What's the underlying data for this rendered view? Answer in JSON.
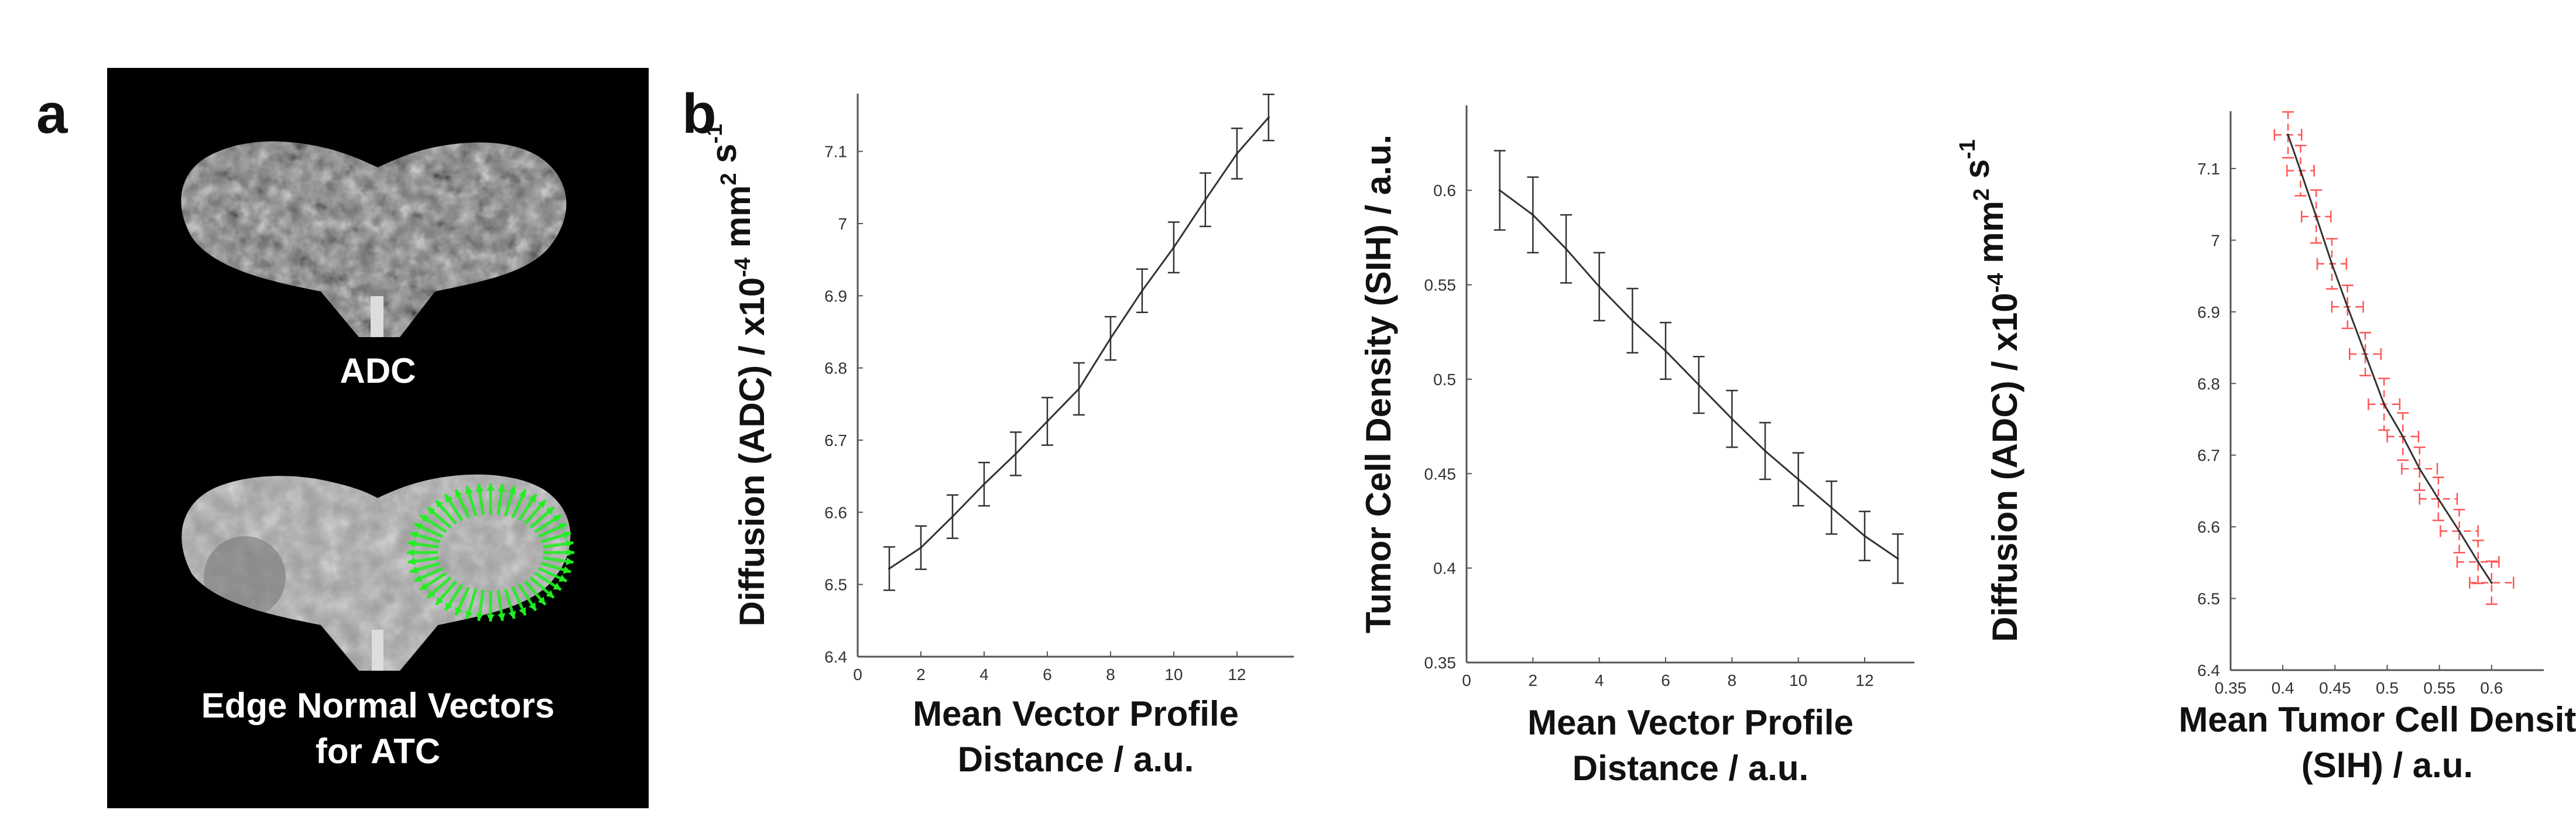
{
  "panel_letters": {
    "a": "a",
    "b": "b"
  },
  "panel_a": {
    "top_image_label": "ADC",
    "bottom_image_label_line1": "Edge Normal Vectors",
    "bottom_image_label_line2": "for ATC",
    "vector_color": "#22ee22"
  },
  "colors": {
    "line": "#333333",
    "axis": "#555555",
    "errorbar_red": "#ff5555"
  },
  "chart_data": [
    {
      "type": "line",
      "title": "",
      "xlabel_lines": [
        "Mean Vector Profile",
        "Distance / a.u."
      ],
      "ylabel": "Diffusion (ADC) / x10",
      "ylabel_sup1": "-4",
      "ylabel_mid": " mm",
      "ylabel_sup2": "2",
      "ylabel_mid2": " s",
      "ylabel_sup3": "-1",
      "xlim": [
        0,
        13.8
      ],
      "ylim": [
        6.4,
        7.18
      ],
      "xticks": [
        0,
        2,
        4,
        6,
        8,
        10,
        12
      ],
      "xtick_labels": [
        "0",
        "2",
        "4",
        "6",
        "8",
        "10",
        "12"
      ],
      "yticks": [
        6.4,
        6.5,
        6.6,
        6.7,
        6.8,
        6.9,
        7.0,
        7.1
      ],
      "ytick_labels": [
        "6.4",
        "6.5",
        "6.6",
        "6.7",
        "6.8",
        "6.9",
        "7",
        "7.1"
      ],
      "grid": false,
      "series": [
        {
          "x": [
            1,
            2,
            3,
            4,
            5,
            6,
            7,
            8,
            9,
            10,
            11,
            12,
            13
          ],
          "y": [
            6.522,
            6.551,
            6.594,
            6.639,
            6.681,
            6.726,
            6.771,
            6.841,
            6.907,
            6.967,
            7.033,
            7.097,
            7.147
          ],
          "yerr": [
            0.03,
            0.03,
            0.03,
            0.03,
            0.03,
            0.033,
            0.036,
            0.03,
            0.03,
            0.035,
            0.037,
            0.035,
            0.032
          ]
        }
      ]
    },
    {
      "type": "line",
      "title": "",
      "ylabel": "Tumor Cell Density (SIH) / a.u.",
      "xlabel_lines": [
        "Mean Vector Profile",
        "Distance / a.u."
      ],
      "xlim": [
        0,
        13.5
      ],
      "ylim": [
        0.35,
        0.645
      ],
      "xticks": [
        0,
        2,
        4,
        6,
        8,
        10,
        12
      ],
      "xtick_labels": [
        "0",
        "2",
        "4",
        "6",
        "8",
        "10",
        "12"
      ],
      "yticks": [
        0.35,
        0.4,
        0.45,
        0.5,
        0.55,
        0.6
      ],
      "ytick_labels": [
        "0.35",
        "0.4",
        "0.45",
        "0.5",
        "0.55",
        "0.6"
      ],
      "grid": false,
      "series": [
        {
          "x": [
            1,
            2,
            3,
            4,
            5,
            6,
            7,
            8,
            9,
            10,
            11,
            12,
            13
          ],
          "y": [
            0.6,
            0.587,
            0.569,
            0.549,
            0.531,
            0.515,
            0.497,
            0.479,
            0.462,
            0.447,
            0.432,
            0.417,
            0.405
          ],
          "yerr": [
            0.021,
            0.02,
            0.018,
            0.018,
            0.017,
            0.015,
            0.015,
            0.015,
            0.015,
            0.014,
            0.014,
            0.013,
            0.013
          ]
        }
      ]
    },
    {
      "type": "line",
      "title": "",
      "xlabel_lines": [
        "Mean Tumor Cell Density",
        "(SIH) / a.u."
      ],
      "ylabel": "Diffusion (ADC) / x10",
      "ylabel_sup1": "-4",
      "ylabel_mid": " mm",
      "ylabel_sup2": "2",
      "ylabel_mid2": " s",
      "ylabel_sup3": "-1",
      "xlim": [
        0.35,
        0.65
      ],
      "ylim": [
        6.4,
        7.18
      ],
      "xticks": [
        0.35,
        0.4,
        0.45,
        0.5,
        0.55,
        0.6
      ],
      "xtick_labels": [
        "0.35",
        "0.4",
        "0.45",
        "0.5",
        "0.55",
        "0.6"
      ],
      "yticks": [
        6.4,
        6.5,
        6.6,
        6.7,
        6.8,
        6.9,
        7.0,
        7.1
      ],
      "ytick_labels": [
        "6.4",
        "6.5",
        "6.6",
        "6.7",
        "6.8",
        "6.9",
        "7",
        "7.1"
      ],
      "grid": false,
      "series": [
        {
          "x": [
            0.405,
            0.417,
            0.432,
            0.447,
            0.462,
            0.479,
            0.497,
            0.515,
            0.531,
            0.549,
            0.569,
            0.587,
            0.6
          ],
          "y": [
            7.147,
            7.097,
            7.033,
            6.967,
            6.907,
            6.841,
            6.771,
            6.726,
            6.681,
            6.639,
            6.594,
            6.551,
            6.522
          ],
          "yerr": [
            0.032,
            0.035,
            0.037,
            0.035,
            0.03,
            0.03,
            0.036,
            0.033,
            0.03,
            0.03,
            0.03,
            0.03,
            0.03
          ],
          "xerr": [
            0.013,
            0.013,
            0.014,
            0.014,
            0.015,
            0.015,
            0.015,
            0.015,
            0.017,
            0.018,
            0.018,
            0.02,
            0.021
          ]
        }
      ]
    }
  ]
}
